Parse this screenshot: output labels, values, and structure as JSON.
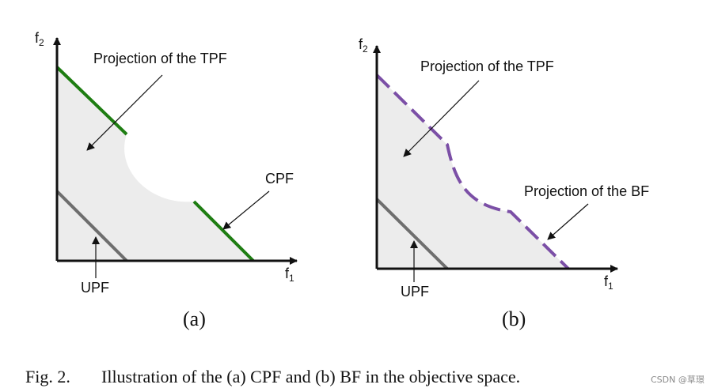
{
  "panel_a": {
    "tpf_label": "Projection of the TPF",
    "cpf_label": "CPF",
    "upf_label": "UPF",
    "panel_label": "(a)",
    "f1": "f",
    "f1_sub": "1",
    "f2": "f",
    "f2_sub": "2"
  },
  "panel_b": {
    "tpf_label": "Projection of the TPF",
    "bf_label": "Projection of the BF",
    "upf_label": "UPF",
    "panel_label": "(b)",
    "f1": "f",
    "f1_sub": "1",
    "f2": "f",
    "f2_sub": "2"
  },
  "caption": {
    "fig_number": "Fig. 2.",
    "text": "Illustration of the (a) CPF and (b) BF in the objective space."
  },
  "watermark": "CSDN @草璟",
  "colors": {
    "region_fill": "#ececec",
    "cpf": "#1e7d12",
    "bf": "#7b4fa6",
    "upf": "#6e6e6e",
    "axis": "#111111"
  }
}
